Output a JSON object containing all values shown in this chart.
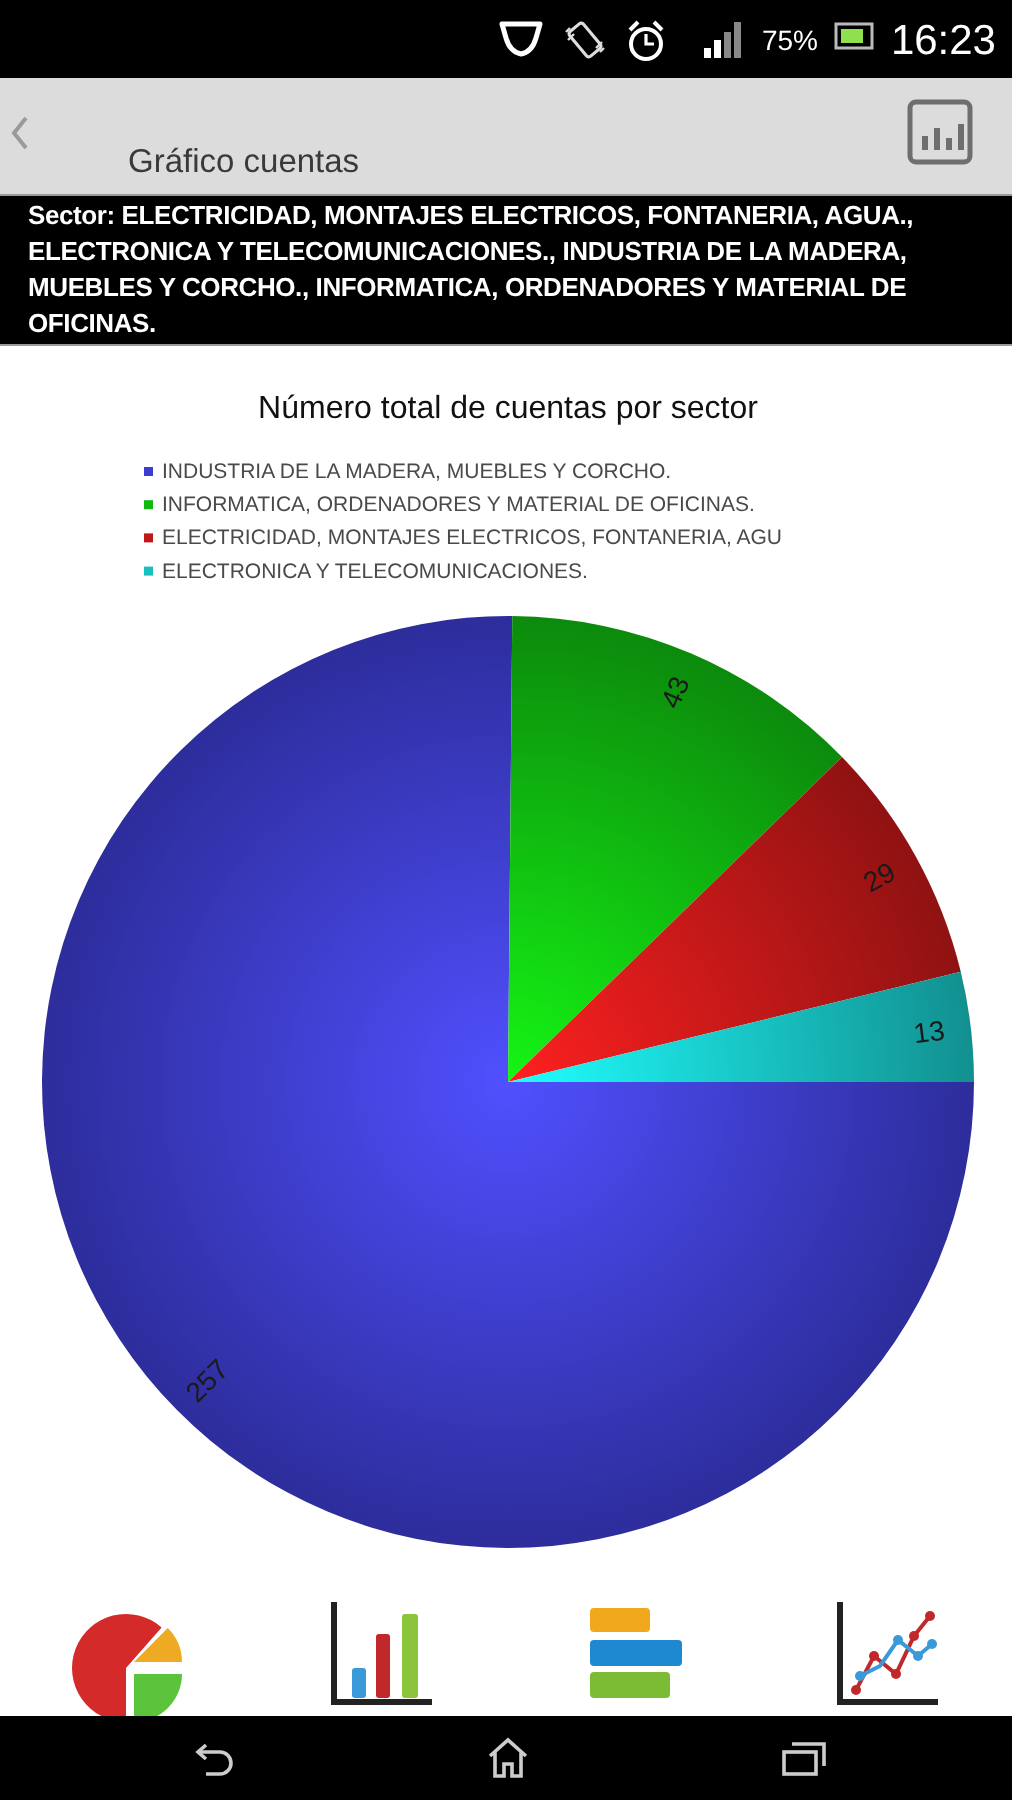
{
  "chart_data": {
    "type": "pie",
    "title": "Número total de cuentas por sector",
    "categories": [
      "INDUSTRIA DE LA MADERA, MUEBLES Y CORCHO.",
      "INFORMATICA, ORDENADORES Y MATERIAL DE OFICINAS.",
      "ELECTRICIDAD, MONTAJES ELECTRICOS, FONTANERIA, AGU",
      "ELECTRONICA Y TELECOMUNICACIONES."
    ],
    "values": [
      257,
      43,
      29,
      13
    ],
    "colors": [
      "#3c3cd0",
      "#10b810",
      "#c01818",
      "#18c0c0"
    ],
    "data_labels": true,
    "legend": "top",
    "annotations": [
      "Gráfico cuentas",
      "Sector: ELECTRICIDAD, MONTAJES ELECTRICOS, FONTANERIA, AGUA., ELECTRONICA Y TELECOMUNICACIONES., INDUSTRIA DE LA MADERA, MUEBLES Y CORCHO., INFORMATICA, ORDENADORES Y MATERIAL DE OFICINAS.",
      "75%",
      "16:23"
    ]
  }
}
